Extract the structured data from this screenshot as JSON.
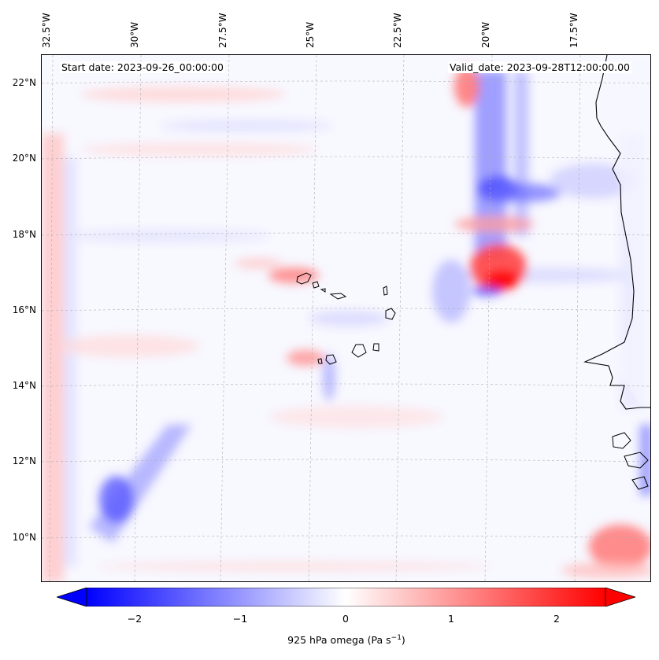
{
  "map": {
    "variable": "925 hPa omega",
    "units_pre": "(Pa s",
    "units_exp": "−1",
    "units_post": ")",
    "start_date": "Start date: 2023-09-26_00:00:00",
    "valid_date": "Valid_date: 2023-09-28T12:00:00.00",
    "lon_ticks": [
      "32.5°W",
      "30°W",
      "27.5°W",
      "25°W",
      "22.5°W",
      "20°W",
      "17.5°W"
    ],
    "lat_ticks": [
      "22°N",
      "20°N",
      "18°N",
      "16°N",
      "14°N",
      "12°N",
      "10°N"
    ],
    "extent": {
      "lon_min": -33.0,
      "lon_max": -15.6,
      "lat_min": 8.8,
      "lat_max": 22.8
    },
    "colormap": "bwr",
    "colors": {
      "neg": "#0000ff",
      "zero": "#ffffff",
      "pos": "#ff0000",
      "coast": "#000000",
      "grid": "#b0b0b0"
    }
  },
  "colorbar": {
    "ticks": [
      "−2",
      "−1",
      "0",
      "1",
      "2"
    ],
    "tick_values": [
      -2,
      -1,
      0,
      1,
      2
    ],
    "vmin": -2.5,
    "vmax": 2.5,
    "extend": "both",
    "orientation": "horizontal"
  },
  "features": [
    {
      "name": "Cape Verde islands",
      "type": "coastline"
    },
    {
      "name": "West African coast (Mauritania, Senegal, Gambia, Guinea-Bissau)",
      "type": "coastline"
    }
  ]
}
